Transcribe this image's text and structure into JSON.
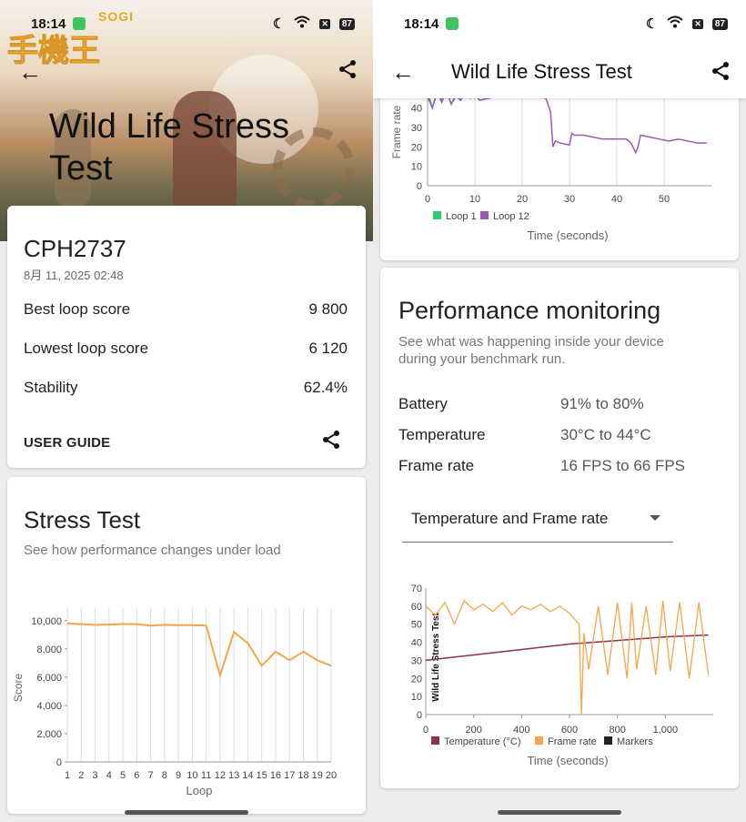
{
  "status": {
    "time": "18:14",
    "battery": "87"
  },
  "watermark": {
    "brand": "SOGI",
    "mark": "手機王"
  },
  "left": {
    "title": "Wild Life Stress Test",
    "summary": {
      "device": "CPH2737",
      "date": "8月 11, 2025 02:48",
      "rows": [
        {
          "label": "Best loop score",
          "value": "9 800"
        },
        {
          "label": "Lowest loop score",
          "value": "6 120"
        },
        {
          "label": "Stability",
          "value": "62.4%"
        }
      ],
      "user_guide": "USER GUIDE"
    },
    "stress": {
      "heading": "Stress Test",
      "subtitle": "See how performance changes under load"
    }
  },
  "right": {
    "title": "Wild Life Stress Test",
    "perf": {
      "heading": "Performance monitoring",
      "subtitle": "See what was happening inside your device during your benchmark run.",
      "rows": [
        {
          "label": "Battery",
          "value": "91% to 80%"
        },
        {
          "label": "Temperature",
          "value": "30°C to 44°C"
        },
        {
          "label": "Frame rate",
          "value": "16 FPS to 66 FPS"
        }
      ],
      "select_value": "Temperature and Frame rate"
    }
  },
  "colors": {
    "orange": "#f5a54a",
    "purple": "#9b59b6",
    "green": "#2ecc71",
    "maroon": "#8e3050"
  },
  "chart_data": [
    {
      "type": "line",
      "title": "Stress Test",
      "xlabel": "Loop",
      "ylabel": "Score",
      "x": [
        1,
        2,
        3,
        4,
        5,
        6,
        7,
        8,
        9,
        10,
        11,
        12,
        13,
        14,
        15,
        16,
        17,
        18,
        19,
        20
      ],
      "xticks": [
        "1",
        "2",
        "3",
        "4",
        "5",
        "6",
        "7",
        "8",
        "9",
        "10",
        "11",
        "12",
        "13",
        "14",
        "15",
        "16",
        "17",
        "18",
        "19",
        "20"
      ],
      "yticks": [
        "0",
        "2,000",
        "4,000",
        "6,000",
        "8,000",
        "10,000"
      ],
      "ylim": [
        0,
        10500
      ],
      "series": [
        {
          "values": [
            9800,
            9750,
            9700,
            9720,
            9760,
            9750,
            9650,
            9700,
            9680,
            9680,
            9650,
            6120,
            9200,
            8400,
            6800,
            7800,
            7200,
            7800,
            7200,
            6800
          ]
        }
      ]
    },
    {
      "type": "line",
      "xlabel": "Time (seconds)",
      "ylabel": "Frame rate",
      "xticks": [
        "0",
        "10",
        "20",
        "30",
        "40",
        "50"
      ],
      "yticks": [
        "0",
        "10",
        "20",
        "30",
        "40"
      ],
      "ylim": [
        0,
        45
      ],
      "xlim": [
        0,
        60
      ],
      "series": [
        {
          "name": "Loop 1",
          "x": [
            0,
            1,
            2,
            3,
            4,
            5,
            6,
            7,
            8,
            9,
            10,
            11
          ],
          "values": [
            50,
            40,
            48,
            44,
            50,
            42,
            47,
            44,
            49,
            45,
            48,
            44
          ]
        },
        {
          "name": "Loop 12",
          "x": [
            0,
            1,
            2,
            3,
            4,
            5,
            6,
            7,
            8,
            9,
            10,
            11,
            20,
            21,
            25,
            26,
            26.5,
            27,
            28,
            30,
            30.5,
            31,
            33,
            35,
            37,
            40,
            42,
            43,
            44,
            44.5,
            45,
            47,
            49,
            51,
            53,
            55,
            57,
            59
          ],
          "values": [
            46,
            40,
            48,
            43,
            50,
            42,
            46,
            44,
            48,
            45,
            47,
            44,
            50,
            48,
            45,
            38,
            20,
            23,
            22,
            21,
            27,
            26,
            26,
            25,
            24,
            24,
            24,
            22,
            17,
            20,
            26,
            25,
            24,
            23,
            24,
            23,
            22,
            22
          ]
        }
      ]
    },
    {
      "type": "line",
      "xlabel": "Time (seconds)",
      "ylabel": "Wild Life Stress Test",
      "xticks": [
        "0",
        "200",
        "400",
        "600",
        "800",
        "1,000"
      ],
      "yticks": [
        "0",
        "10",
        "20",
        "30",
        "40",
        "50",
        "60",
        "70"
      ],
      "ylim": [
        0,
        70
      ],
      "xlim": [
        0,
        1200
      ],
      "series": [
        {
          "name": "Temperature (°C)",
          "x": [
            0,
            200,
            400,
            600,
            800,
            1000,
            1180
          ],
          "values": [
            30,
            33,
            36,
            39,
            41,
            43,
            44
          ]
        },
        {
          "name": "Frame rate",
          "x": [
            0,
            40,
            80,
            120,
            160,
            200,
            240,
            280,
            320,
            360,
            400,
            440,
            480,
            520,
            560,
            600,
            640,
            650,
            660,
            680,
            720,
            760,
            800,
            840,
            860,
            880,
            920,
            960,
            990,
            1020,
            1060,
            1100,
            1140,
            1180
          ],
          "values": [
            60,
            55,
            62,
            50,
            63,
            58,
            61,
            57,
            62,
            55,
            60,
            58,
            61,
            57,
            60,
            56,
            50,
            0,
            45,
            25,
            60,
            22,
            62,
            20,
            62,
            25,
            60,
            22,
            63,
            24,
            62,
            20,
            62,
            22
          ]
        },
        {
          "name": "Markers",
          "x": [],
          "values": []
        }
      ]
    }
  ]
}
